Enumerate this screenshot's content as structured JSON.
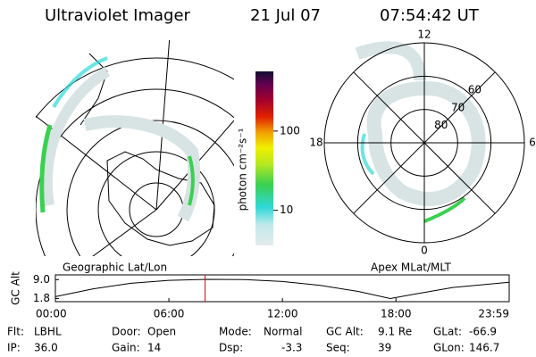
{
  "header": {
    "title": "Ultraviolet Imager",
    "date": "21 Jul 07",
    "time": "07:54:42 UT"
  },
  "left_map": {
    "label": "Geographic Lat/Lon"
  },
  "right_map": {
    "label": "Apex MLat/MLT",
    "mlt_labels": [
      12,
      6,
      0,
      18
    ],
    "mlat_labels": [
      80,
      70,
      60
    ]
  },
  "colorbar": {
    "label": "photon cm⁻²s⁻¹",
    "scale": "log",
    "lim": [
      3.6,
      566
    ],
    "ticks": [
      10,
      100
    ]
  },
  "chart_data": {
    "type": "line",
    "ylabel": "GC Alt",
    "color": "#000000",
    "x": [
      0,
      2,
      4,
      6,
      8,
      10,
      12,
      14,
      16,
      17.7,
      19,
      21,
      23.983
    ],
    "values": [
      2.5,
      5.5,
      7.6,
      8.7,
      9.1,
      9.0,
      8.3,
      6.8,
      4.5,
      1.8,
      3.5,
      6.0,
      8.0
    ],
    "xlim": [
      0,
      23.983
    ],
    "ylim": [
      0.6,
      10.8
    ],
    "yticks": [
      1.8,
      {
        "value": 9,
        "label": "9.0"
      }
    ],
    "xticks": [
      {
        "value": 0,
        "label": "00:00"
      },
      {
        "value": 6,
        "label": "06:00"
      },
      {
        "value": 12,
        "label": "12:00"
      },
      {
        "value": 18,
        "label": "18:00"
      },
      {
        "value": 23.983,
        "label": "23:59"
      }
    ],
    "marker_time": 7.912,
    "marker_color": "#e00000"
  },
  "status": [
    [
      {
        "label": "Flt:",
        "value": "LBHL"
      },
      {
        "label": "Door:",
        "value": "Open"
      },
      {
        "label": "Mode:",
        "value": "Normal"
      },
      {
        "label": "GC Alt:",
        "value": "9.1 Re"
      },
      {
        "label": "GLat:",
        "value": "-66.9"
      }
    ],
    [
      {
        "label": "IP:",
        "value": "36.0"
      },
      {
        "label": "Gain:",
        "value": "14"
      },
      {
        "label": "Dsp:",
        "value": "-3.3"
      },
      {
        "label": "Seq:",
        "value": "39"
      },
      {
        "label": "GLon:",
        "value": "146.7"
      }
    ]
  ]
}
